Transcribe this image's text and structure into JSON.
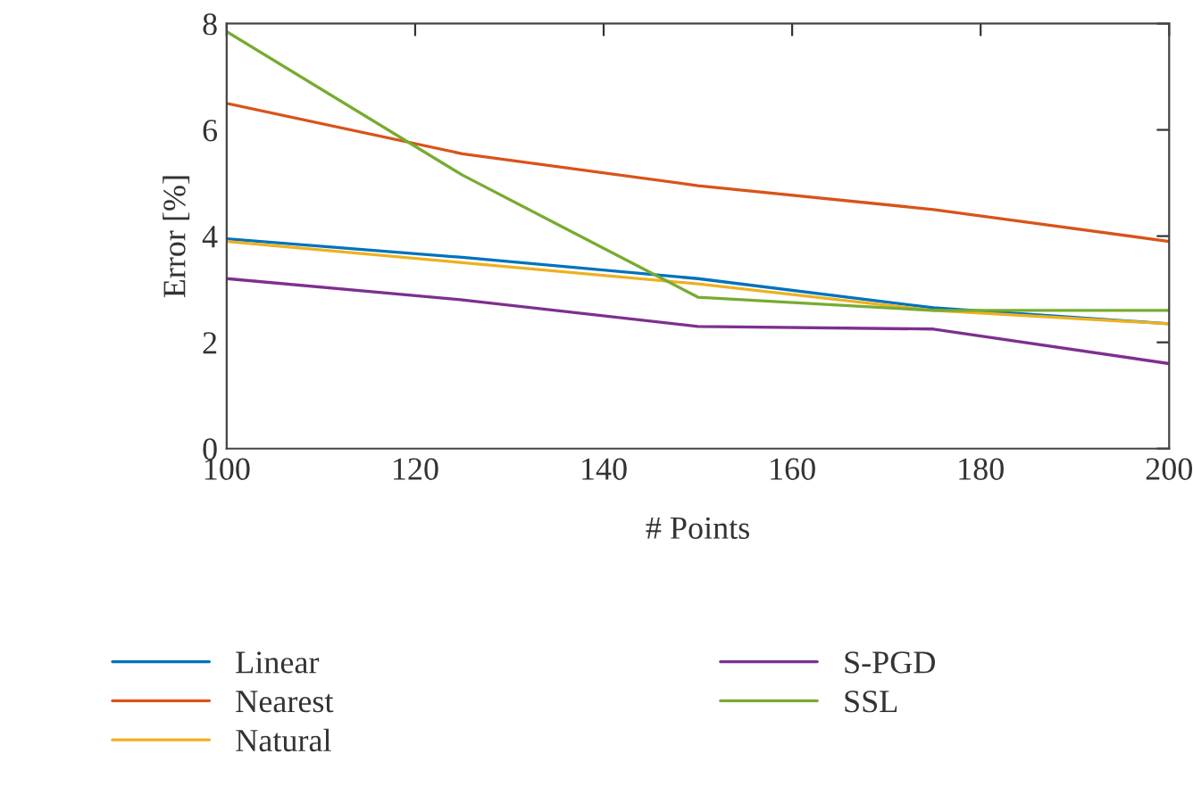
{
  "chart_data": {
    "type": "line",
    "xlabel": "# Points",
    "ylabel": "Error [%]",
    "x": [
      100,
      125,
      150,
      175,
      200
    ],
    "xlim": [
      100,
      200
    ],
    "xticks": [
      100,
      120,
      140,
      160,
      180,
      200
    ],
    "ylim": [
      0,
      8
    ],
    "yticks": [
      0,
      2,
      4,
      6,
      8
    ],
    "grid": false,
    "legend": "bottom",
    "marker": "none",
    "line_style": "solid",
    "series": [
      {
        "name": "Linear",
        "color": "#0072bd",
        "values": [
          3.95,
          3.6,
          3.2,
          2.65,
          2.35
        ]
      },
      {
        "name": "Nearest",
        "color": "#d95319",
        "values": [
          6.5,
          5.55,
          4.95,
          4.5,
          3.9
        ]
      },
      {
        "name": "Natural",
        "color": "#edb120",
        "values": [
          3.9,
          3.5,
          3.1,
          2.6,
          2.35
        ]
      },
      {
        "name": "S-PGD",
        "color": "#7e2f8e",
        "values": [
          3.2,
          2.8,
          2.3,
          2.25,
          1.6
        ]
      },
      {
        "name": "SSL",
        "color": "#77ac30",
        "values": [
          7.85,
          5.15,
          2.85,
          2.6,
          2.6
        ]
      }
    ]
  }
}
